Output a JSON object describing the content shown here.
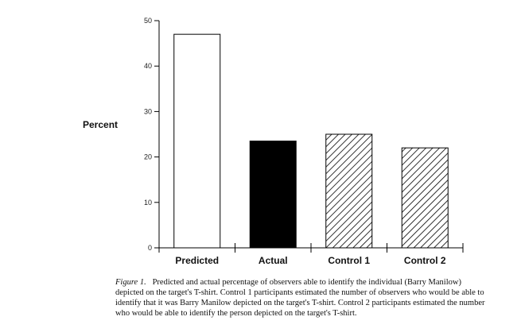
{
  "chart_data": {
    "type": "bar",
    "categories": [
      "Predicted",
      "Actual",
      "Control 1",
      "Control 2"
    ],
    "values": [
      47,
      23.5,
      25,
      22
    ],
    "fills": [
      "white",
      "black",
      "hatch",
      "hatch"
    ],
    "ylabel": "Percent",
    "ylim": [
      0,
      50
    ],
    "yticks": [
      "0",
      "10",
      "20",
      "30",
      "40",
      "50"
    ],
    "grid": false,
    "legend": "none"
  },
  "caption": {
    "figure_number": "Figure 1.",
    "text": "Predicted and actual percentage of observers able to identify the individual (Barry Manilow) depicted on the target's T-shirt. Control 1 participants estimated the number of observers who would be able to identify that it was Barry Manilow depicted on the target's T-shirt. Control 2 participants estimated the number who would be able to identify the person depicted on the target's T-shirt."
  },
  "colors": {
    "ink": "#000000",
    "background": "#ffffff"
  }
}
